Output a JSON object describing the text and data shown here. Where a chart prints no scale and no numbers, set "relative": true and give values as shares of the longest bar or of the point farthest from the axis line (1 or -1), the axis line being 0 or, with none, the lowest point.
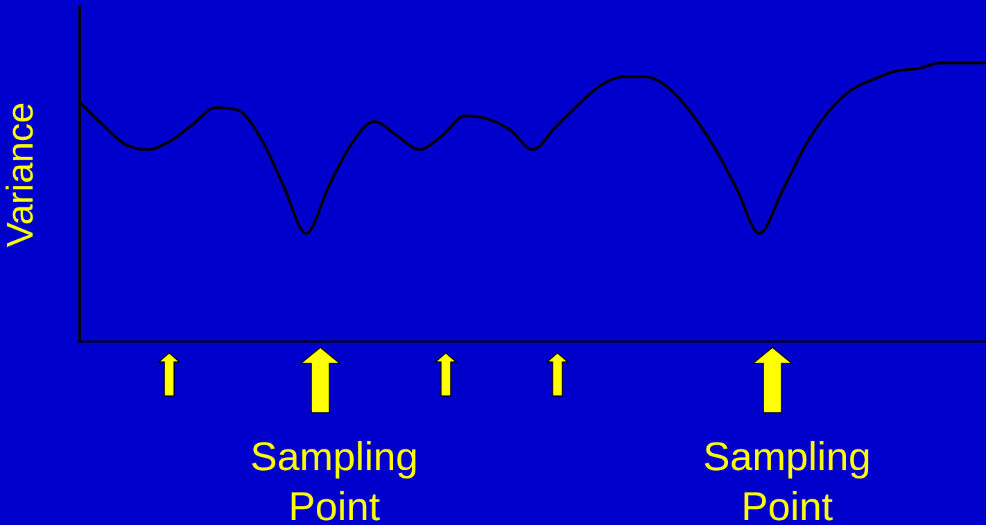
{
  "chart_data": {
    "type": "line",
    "relative": true,
    "ylabel": "Variance",
    "color": "#000000",
    "marker": "none",
    "line_style": "solid",
    "grid": false,
    "legend": false,
    "categories": [
      null,
      null,
      null,
      null,
      null,
      null,
      null,
      null,
      null,
      null,
      null,
      null,
      null,
      null,
      null,
      null,
      null,
      null,
      null,
      null,
      null,
      null,
      null,
      null,
      null,
      null,
      null,
      null,
      null,
      null,
      null,
      null,
      null,
      null,
      null,
      null,
      null,
      null,
      null,
      null,
      null
    ],
    "values": [
      0.86,
      0.78,
      0.71,
      0.69,
      0.72,
      0.78,
      0.84,
      0.83,
      0.73,
      0.56,
      0.39,
      0.56,
      0.71,
      0.79,
      0.74,
      0.69,
      0.74,
      0.81,
      0.8,
      0.76,
      0.69,
      0.77,
      0.85,
      0.92,
      0.95,
      0.95,
      0.91,
      0.82,
      0.7,
      0.55,
      0.39,
      0.54,
      0.7,
      0.82,
      0.9,
      0.94,
      0.97,
      0.98,
      1.0,
      1,
      1.0
    ],
    "annotations": [
      "Sampling Point",
      "Sampling Point"
    ]
  }
}
